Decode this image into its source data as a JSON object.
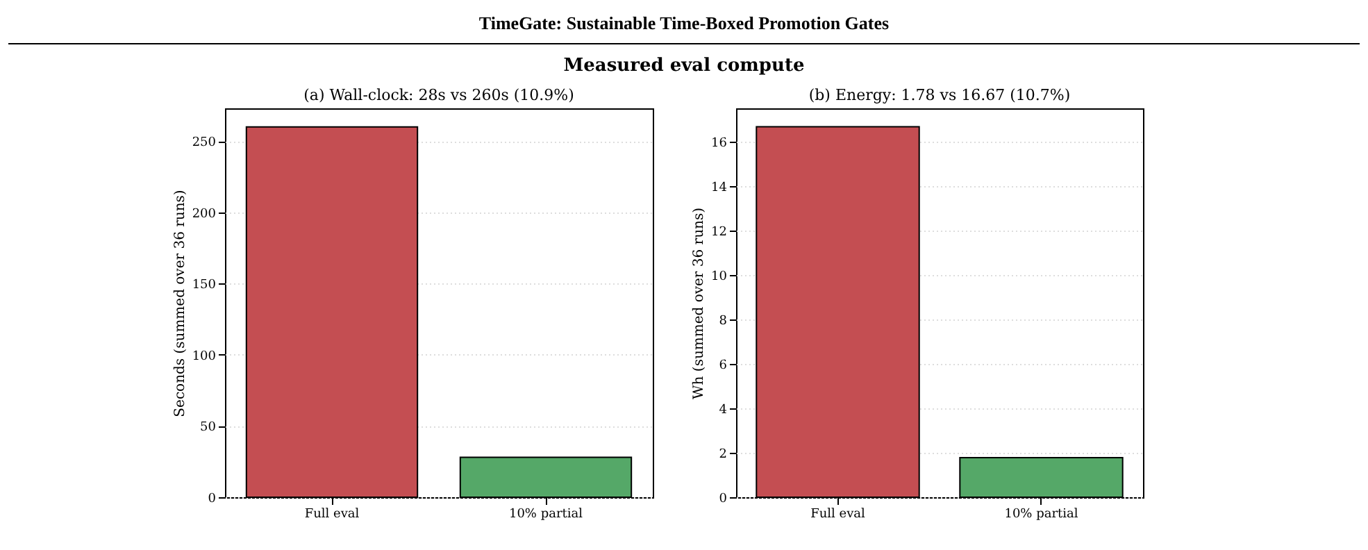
{
  "chart_data": [
    {
      "type": "other",
      "title": "TimeGate: Sustainable Time-Boxed Promotion Gates",
      "subtitle": "Measured eval compute"
    },
    {
      "type": "bar",
      "title": "(a) Wall-clock: 28s vs 260s  (10.9%)",
      "ylabel": "Seconds (summed over 36 runs)",
      "categories": [
        "Full eval",
        "10% partial"
      ],
      "values": [
        260,
        28
      ],
      "colors": [
        "#c44e52",
        "#55a868"
      ],
      "ylim": [
        0,
        273
      ],
      "yticks": [
        0,
        50,
        100,
        150,
        200,
        250
      ],
      "grid": "y"
    },
    {
      "type": "bar",
      "title": "(b) Energy: 1.78 vs 16.67  (10.7%)",
      "ylabel": "Wh (summed over 36 runs)",
      "categories": [
        "Full eval",
        "10% partial"
      ],
      "values": [
        16.67,
        1.78
      ],
      "colors": [
        "#c44e52",
        "#55a868"
      ],
      "ylim": [
        0,
        17.5
      ],
      "yticks": [
        0,
        2,
        4,
        6,
        8,
        10,
        12,
        14,
        16
      ],
      "grid": "y"
    }
  ]
}
